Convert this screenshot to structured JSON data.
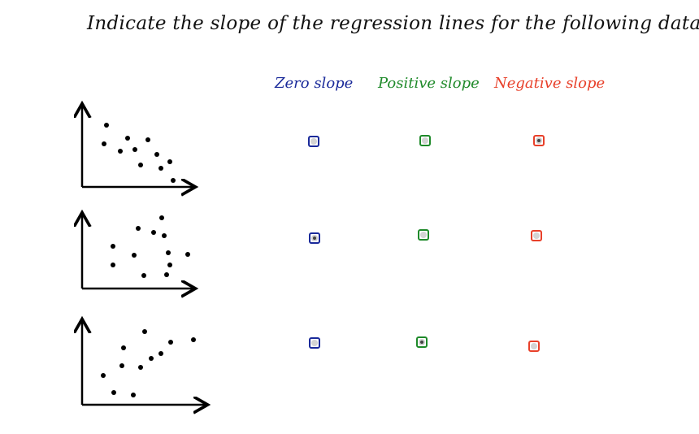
{
  "title": "Indicate the slope of the regression lines for the following data.",
  "columns": [
    {
      "label": "Zero slope",
      "color": "#1a2a9a"
    },
    {
      "label": "Positive slope",
      "color": "#1f8a2a"
    },
    {
      "label": "Negative slope",
      "color": "#e8402a"
    }
  ],
  "rows": [
    {
      "scatter": "negative",
      "selected": 2
    },
    {
      "scatter": "zero",
      "selected": 0
    },
    {
      "scatter": "positive",
      "selected": 1
    }
  ]
}
